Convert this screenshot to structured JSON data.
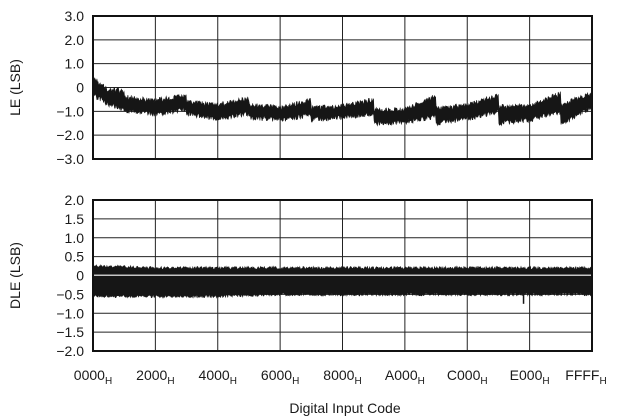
{
  "chart_data": [
    {
      "type": "area",
      "title": "",
      "ylabel": "LE (LSB)",
      "ylim": [
        -3.0,
        3.0
      ],
      "yticks": [
        "3.0",
        "2.0",
        "1.0",
        "0",
        "−1.0",
        "−2.0",
        "−3.0"
      ],
      "ytick_values": [
        3,
        2,
        1,
        0,
        -1,
        -2,
        -3
      ],
      "grid": true,
      "series": [
        {
          "x": [
            0,
            2048,
            4095,
            4096,
            8192,
            12287,
            12288,
            16384,
            20479,
            20480,
            24576,
            28671,
            28672,
            32768,
            36863,
            36864,
            40960,
            45055,
            45056,
            49152,
            53247,
            53248,
            57344,
            61439,
            61440,
            65535
          ],
          "upper": [
            0.4,
            -0.1,
            -0.15,
            -0.4,
            -0.55,
            -0.35,
            -0.6,
            -0.75,
            -0.45,
            -0.75,
            -0.85,
            -0.55,
            -0.85,
            -0.8,
            -0.5,
            -0.95,
            -0.95,
            -0.35,
            -0.9,
            -0.75,
            -0.35,
            -0.8,
            -0.8,
            -0.25,
            -0.75,
            -0.25
          ],
          "lower": [
            -0.3,
            -0.7,
            -0.9,
            -0.95,
            -1.1,
            -0.95,
            -1.1,
            -1.3,
            -1.1,
            -1.25,
            -1.35,
            -1.15,
            -1.35,
            -1.25,
            -1.1,
            -1.5,
            -1.45,
            -1.2,
            -1.5,
            -1.3,
            -1.0,
            -1.5,
            -1.35,
            -1.0,
            -1.55,
            -0.8
          ]
        }
      ]
    },
    {
      "type": "area",
      "title": "",
      "ylabel": "DLE (LSB)",
      "ylim": [
        -2.0,
        2.0
      ],
      "yticks": [
        "2.0",
        "1.5",
        "1.0",
        "0.5",
        "0",
        "−0.5",
        "−1.0",
        "−1.5",
        "−2.0"
      ],
      "ytick_values": [
        2,
        1.5,
        1,
        0.5,
        0,
        -0.5,
        -1,
        -1.5,
        -2
      ],
      "grid": true,
      "xlabel": "Digital Input Code",
      "xlim": [
        0,
        65535
      ],
      "xticks": [
        "0000",
        "2000",
        "4000",
        "6000",
        "8000",
        "A000",
        "C000",
        "E000",
        "FFFF"
      ],
      "xtick_subscript": "H",
      "series": [
        {
          "x": [
            0,
            8192,
            16384,
            24576,
            32768,
            40960,
            49152,
            57344,
            65535
          ],
          "upper": [
            0.25,
            0.2,
            0.2,
            0.2,
            0.2,
            0.2,
            0.2,
            0.2,
            0.2
          ],
          "lower": [
            -0.55,
            -0.55,
            -0.55,
            -0.5,
            -0.5,
            -0.5,
            -0.5,
            -0.5,
            -0.5
          ],
          "gap": [
            0.0,
            -0.05
          ]
        }
      ]
    }
  ]
}
